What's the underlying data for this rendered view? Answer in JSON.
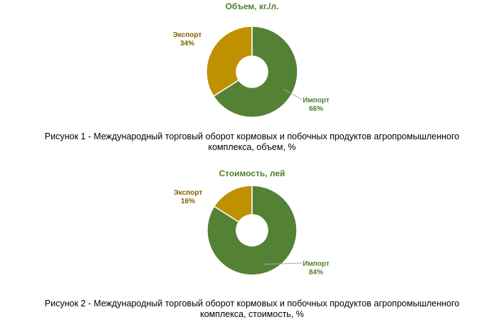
{
  "colors": {
    "import": "#548235",
    "export": "#bf9000",
    "title": "#4f7f2a",
    "label_import": "#4f7f2a",
    "label_export": "#806000"
  },
  "chart_data": [
    {
      "type": "pie",
      "title": "Объем, кг./л.",
      "hole": true,
      "slices": [
        {
          "label": "Импорт",
          "pct_text": "66%",
          "value": 66
        },
        {
          "label": "Экспорт",
          "pct_text": "34%",
          "value": 34
        }
      ],
      "caption": {
        "line1": "Рисунок 1 - Международный торговый оборот кормовых и побочных продуктов агропромышленного",
        "line2": "комплекса, объем, %"
      }
    },
    {
      "type": "pie",
      "title": "Стоимость, лей",
      "hole": true,
      "slices": [
        {
          "label": "Импорт",
          "pct_text": "84%",
          "value": 84
        },
        {
          "label": "Экспорт",
          "pct_text": "16%",
          "value": 16
        }
      ],
      "caption": {
        "line1": "Рисунок 2 - Международный торговый оборот кормовых и побочных продуктов агропромышленного",
        "line2": "комплекса, стоимость, %"
      }
    }
  ]
}
